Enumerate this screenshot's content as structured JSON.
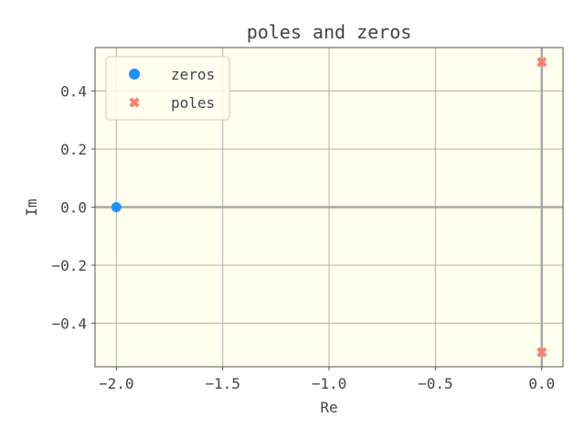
{
  "chart_data": {
    "type": "scatter",
    "title": "poles and zeros",
    "xlabel": "Re",
    "ylabel": "Im",
    "xlim": [
      -2.1,
      0.1
    ],
    "ylim": [
      -0.55,
      0.55
    ],
    "xticks": [
      -2.0,
      -1.5,
      -1.0,
      -0.5,
      0.0
    ],
    "yticks": [
      -0.4,
      -0.2,
      0.0,
      0.2,
      0.4
    ],
    "xtick_labels": [
      "−2.0",
      "−1.5",
      "−1.0",
      "−0.5",
      "0.0"
    ],
    "ytick_labels": [
      "−0.4",
      "−0.2",
      "0.0",
      "0.2",
      "0.4"
    ],
    "grid": true,
    "legend": "top-left",
    "background_color": "#fffff0",
    "series": [
      {
        "name": "zeros",
        "marker": "circle",
        "color": "#1e90ff",
        "points": [
          {
            "x": -2.0,
            "y": 0.0
          }
        ]
      },
      {
        "name": "poles",
        "marker": "x",
        "color": "#fa8072",
        "points": [
          {
            "x": 0.0,
            "y": 0.5
          },
          {
            "x": 0.0,
            "y": -0.5
          }
        ]
      }
    ]
  }
}
